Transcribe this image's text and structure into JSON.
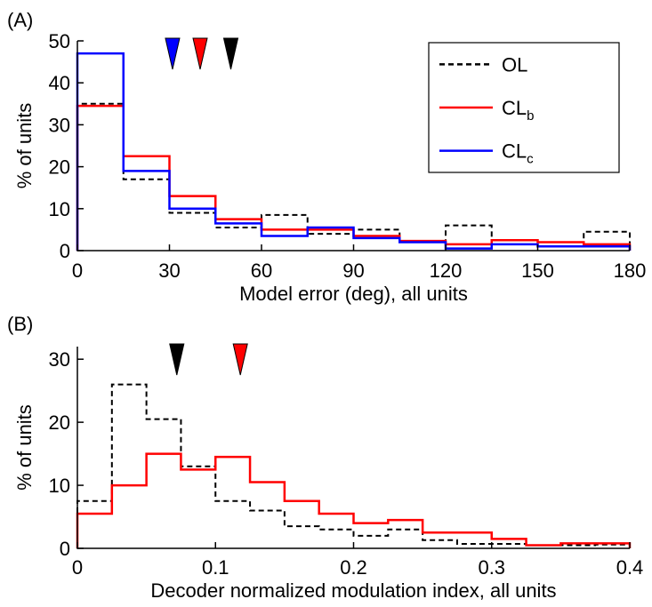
{
  "colors": {
    "OL": "#000000",
    "CL_b": "#ff0000",
    "CL_c": "#0000ff"
  },
  "chart_data": [
    {
      "panel_label": "(A)",
      "type": "line",
      "xlabel": "Model error (deg), all units",
      "ylabel": "% of units",
      "xlim": [
        0,
        180
      ],
      "ylim": [
        0,
        50
      ],
      "xticks": [
        "0",
        "30",
        "60",
        "90",
        "120",
        "150",
        "180"
      ],
      "yticks": [
        "0",
        "10",
        "20",
        "30",
        "40",
        "50"
      ],
      "bin_edges": [
        0,
        15,
        30,
        45,
        60,
        75,
        90,
        105,
        120,
        135,
        150,
        165,
        180
      ],
      "legend": {
        "position": "top-right",
        "entries": [
          {
            "key": "OL",
            "base": "OL",
            "sub": ""
          },
          {
            "key": "CL_b",
            "base": "CL",
            "sub": "b"
          },
          {
            "key": "CL_c",
            "base": "CL",
            "sub": "c"
          }
        ]
      },
      "series": [
        {
          "key": "OL",
          "style": "dashed",
          "values": [
            35,
            17,
            9,
            5.5,
            8.5,
            4,
            5,
            2,
            6,
            2.5,
            2,
            4.5
          ]
        },
        {
          "key": "CL_b",
          "style": "solid",
          "values": [
            34.5,
            22.5,
            13,
            7.5,
            5,
            5,
            3.5,
            2.3,
            1.5,
            2.5,
            2,
            1.5
          ]
        },
        {
          "key": "CL_c",
          "style": "solid",
          "values": [
            47,
            19,
            10,
            6.5,
            3.5,
            5.5,
            3,
            2,
            0.5,
            1.5,
            1,
            1
          ]
        }
      ],
      "markers": [
        {
          "key": "CL_c",
          "x": 31
        },
        {
          "key": "CL_b",
          "x": 40
        },
        {
          "key": "OL",
          "x": 50
        }
      ]
    },
    {
      "panel_label": "(B)",
      "type": "line",
      "xlabel": "Decoder normalized modulation index, all units",
      "ylabel": "% of units",
      "xlim": [
        0,
        0.4
      ],
      "ylim": [
        0,
        32
      ],
      "xticks": [
        "0",
        "0.1",
        "0.2",
        "0.3",
        "0.4"
      ],
      "yticks": [
        "0",
        "10",
        "20",
        "30"
      ],
      "bin_edges": [
        0,
        0.025,
        0.05,
        0.075,
        0.1,
        0.125,
        0.15,
        0.175,
        0.2,
        0.225,
        0.25,
        0.275,
        0.3,
        0.325,
        0.35,
        0.375,
        0.4
      ],
      "series": [
        {
          "key": "OL",
          "style": "dashed",
          "values": [
            7.5,
            26,
            20.5,
            13,
            7.5,
            6,
            3.5,
            3,
            2,
            3,
            1.3,
            0.7,
            0.7,
            0.5,
            0.5,
            0.6
          ]
        },
        {
          "key": "CL_b",
          "style": "solid",
          "values": [
            5.5,
            10,
            15,
            12.5,
            14.5,
            10.5,
            7.5,
            5.5,
            4,
            4.5,
            2.5,
            2.5,
            1.5,
            0.5,
            0.8,
            0.8
          ]
        }
      ],
      "markers": [
        {
          "key": "OL",
          "x": 0.072
        },
        {
          "key": "CL_b",
          "x": 0.118
        }
      ]
    }
  ]
}
